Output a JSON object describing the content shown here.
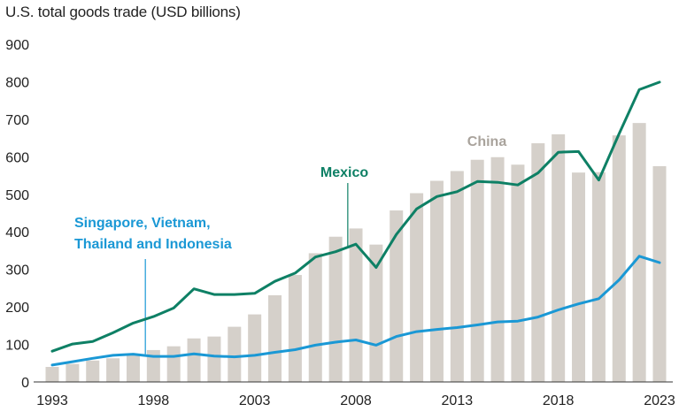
{
  "chart_data": {
    "type": "bar+line",
    "title": "U.S. total goods trade (USD billions)",
    "xlabel": "",
    "ylabel": "",
    "ylim": [
      0,
      900
    ],
    "yticks": [
      0,
      100,
      200,
      300,
      400,
      500,
      600,
      700,
      800,
      900
    ],
    "xticks": [
      "1993",
      "1998",
      "2003",
      "2008",
      "2013",
      "2018",
      "2023"
    ],
    "grid": false,
    "x": [
      1993,
      1994,
      1995,
      1996,
      1997,
      1998,
      1999,
      2000,
      2001,
      2002,
      2003,
      2004,
      2005,
      2006,
      2007,
      2008,
      2009,
      2010,
      2011,
      2012,
      2013,
      2014,
      2015,
      2016,
      2017,
      2018,
      2019,
      2020,
      2021,
      2022,
      2023
    ],
    "series": [
      {
        "name": "China",
        "kind": "bar",
        "color": "#d5d0ca",
        "values": [
          40,
          48,
          57,
          63,
          75,
          85,
          95,
          116,
          121,
          147,
          180,
          231,
          285,
          343,
          387,
          409,
          366,
          457,
          503,
          536,
          562,
          592,
          599,
          579,
          636,
          660,
          558,
          559,
          657,
          690,
          575
        ]
      },
      {
        "name": "Mexico",
        "kind": "line",
        "color": "#0e8065",
        "values": [
          82,
          101,
          108,
          131,
          157,
          174,
          197,
          248,
          233,
          233,
          236,
          268,
          290,
          333,
          347,
          367,
          305,
          393,
          461,
          494,
          507,
          534,
          532,
          525,
          557,
          612,
          614,
          538,
          661,
          779,
          799
        ]
      },
      {
        "name": "Singapore, Vietnam, Thailand and Indonesia",
        "label_lines": [
          "Singapore, Vietnam,",
          "Thailand and Indonesia"
        ],
        "kind": "line",
        "color": "#1a98d5",
        "values": [
          45,
          54,
          63,
          71,
          74,
          68,
          68,
          75,
          69,
          67,
          71,
          79,
          86,
          98,
          106,
          112,
          98,
          121,
          134,
          140,
          145,
          152,
          160,
          162,
          173,
          192,
          208,
          222,
          272,
          335,
          318
        ]
      }
    ],
    "annotations": [
      {
        "series": "China"
      },
      {
        "series": "Mexico",
        "year": 2007.6,
        "value": 362
      },
      {
        "series": "Singapore, Vietnam, Thailand and Indonesia",
        "year": 1997.6,
        "value": 74
      }
    ]
  }
}
